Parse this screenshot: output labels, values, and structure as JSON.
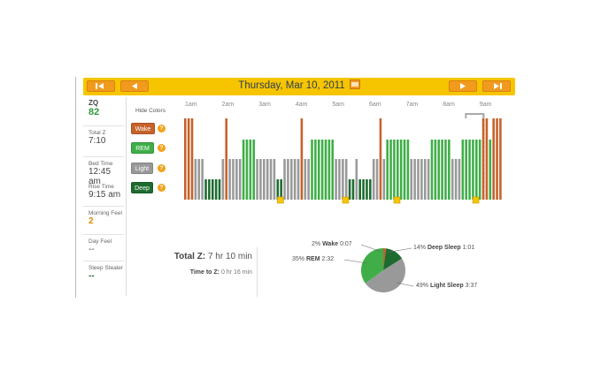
{
  "colors": {
    "wake": "#c6622a",
    "rem": "#3fae48",
    "light": "#999999",
    "deep": "#1e6b30",
    "header": "#f6c500",
    "button": "#f29a1e"
  },
  "header": {
    "date": "Thursday, Mar 10, 2011",
    "nav_icons": [
      "skip-back-icon",
      "back-icon",
      "forward-icon",
      "skip-forward-icon"
    ]
  },
  "sidebar": {
    "zq_label": "ZQ",
    "zq_value": "82",
    "total_z_label": "Total Z",
    "total_z_value": "7:10",
    "bed_time_label": "Bed Time",
    "bed_time_value": "12:45 am",
    "rise_time_label": "Rise Time",
    "rise_time_value": "9:15 am",
    "morning_feel_label": "Morning Feel",
    "morning_feel_value": "2",
    "day_feel_label": "Day Feel",
    "day_feel_value": "--",
    "sleep_stealer_label": "Sleep Stealer",
    "sleep_stealer_value": "--"
  },
  "legend": {
    "hide_colors": "Hide Colors",
    "wake": "Wake",
    "rem": "REM",
    "light": "Light",
    "deep": "Deep",
    "help_glyph": "?"
  },
  "hours": [
    "1am",
    "2am",
    "3am",
    "4am",
    "5am",
    "6am",
    "7am",
    "8am",
    "9am"
  ],
  "summary": {
    "total_z_label": "Total Z:",
    "total_z_value": "7 hr 10 min",
    "time_to_z_label": "Time to Z:",
    "time_to_z_value": "0 hr 16 min"
  },
  "chart_data": {
    "type": "pie",
    "slices": [
      {
        "label": "Wake",
        "percent": 2,
        "duration": "0:07",
        "pct_text": "2%"
      },
      {
        "label": "Deep Sleep",
        "percent": 14,
        "duration": "1:01",
        "pct_text": "14%"
      },
      {
        "label": "Light Sleep",
        "percent": 49,
        "duration": "3:37",
        "pct_text": "49%"
      },
      {
        "label": "REM",
        "percent": 35,
        "duration": "2:32",
        "pct_text": "35%"
      }
    ]
  },
  "hypnogram": {
    "x_range": [
      "12:45 am",
      "9:15 am"
    ],
    "levels": [
      "Wake",
      "REM",
      "Light",
      "Deep"
    ],
    "segments": [
      {
        "stage": "Wake",
        "start": 0,
        "end": 3
      },
      {
        "stage": "Light",
        "start": 3,
        "end": 6
      },
      {
        "stage": "Deep",
        "start": 6,
        "end": 11
      },
      {
        "stage": "Light",
        "start": 11,
        "end": 12
      },
      {
        "stage": "Wake",
        "start": 12,
        "end": 13
      },
      {
        "stage": "Light",
        "start": 13,
        "end": 17
      },
      {
        "stage": "REM",
        "start": 17,
        "end": 21
      },
      {
        "stage": "Light",
        "start": 21,
        "end": 27
      },
      {
        "stage": "Deep",
        "start": 27,
        "end": 29
      },
      {
        "stage": "Light",
        "start": 29,
        "end": 34
      },
      {
        "stage": "Wake",
        "start": 34,
        "end": 35
      },
      {
        "stage": "Light",
        "start": 35,
        "end": 37
      },
      {
        "stage": "REM",
        "start": 37,
        "end": 44
      },
      {
        "stage": "Light",
        "start": 44,
        "end": 48
      },
      {
        "stage": "Deep",
        "start": 48,
        "end": 50
      },
      {
        "stage": "Light",
        "start": 50,
        "end": 51
      },
      {
        "stage": "Deep",
        "start": 51,
        "end": 55
      },
      {
        "stage": "Light",
        "start": 55,
        "end": 57
      },
      {
        "stage": "Wake",
        "start": 57,
        "end": 58
      },
      {
        "stage": "Light",
        "start": 58,
        "end": 59
      },
      {
        "stage": "REM",
        "start": 59,
        "end": 66
      },
      {
        "stage": "Light",
        "start": 66,
        "end": 72
      },
      {
        "stage": "REM",
        "start": 72,
        "end": 78
      },
      {
        "stage": "Light",
        "start": 78,
        "end": 81
      },
      {
        "stage": "REM",
        "start": 81,
        "end": 87
      },
      {
        "stage": "Wake",
        "start": 87,
        "end": 89
      },
      {
        "stage": "REM",
        "start": 89,
        "end": 90
      },
      {
        "stage": "Wake",
        "start": 90,
        "end": 93
      }
    ],
    "markers": [
      28,
      47,
      62,
      85
    ]
  }
}
